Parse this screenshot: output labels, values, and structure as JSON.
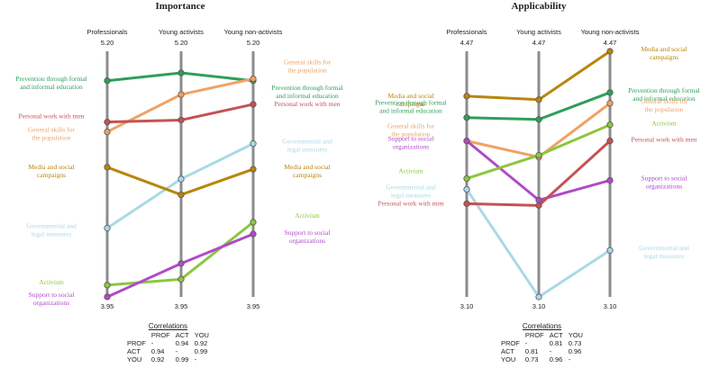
{
  "chart_data": [
    {
      "type": "line",
      "title": "Importance",
      "axes": [
        "Professionals",
        "Young activists",
        "Young non-activists"
      ],
      "ylim": [
        3.95,
        5.2
      ],
      "axis_top_labels": [
        "5.20",
        "5.20",
        "5.20"
      ],
      "axis_bottom_labels": [
        "3.95",
        "3.95",
        "3.95"
      ],
      "series": [
        {
          "name": "Prevention through formal and informal education",
          "color": "#2f9e5b",
          "values": [
            5.05,
            5.09,
            5.05
          ]
        },
        {
          "name": "General skills for the population",
          "color": "#f0a263",
          "values": [
            4.79,
            4.98,
            5.06
          ]
        },
        {
          "name": "Personal work with men",
          "color": "#c65153",
          "values": [
            4.84,
            4.85,
            4.93
          ]
        },
        {
          "name": "Governmental and legal measures",
          "color": "#a9d9e6",
          "values": [
            4.3,
            4.55,
            4.73
          ]
        },
        {
          "name": "Media and social campaigns",
          "color": "#b8860b",
          "values": [
            4.61,
            4.47,
            4.6
          ]
        },
        {
          "name": "Activism",
          "color": "#8cc63f",
          "values": [
            4.01,
            4.04,
            4.33
          ]
        },
        {
          "name": "Support to social organizations",
          "color": "#b04ac8",
          "values": [
            3.95,
            4.12,
            4.27
          ]
        }
      ],
      "correlations": {
        "title": "Correlations",
        "headers": [
          "PROF",
          "ACT",
          "YOU"
        ],
        "rows": [
          {
            "label": "PROF",
            "values": [
              "-",
              "0.94",
              "0.92"
            ]
          },
          {
            "label": "ACT",
            "values": [
              "0.94",
              "-",
              "0.99"
            ]
          },
          {
            "label": "YOU",
            "values": [
              "0.92",
              "0.99",
              "-"
            ]
          }
        ]
      }
    },
    {
      "type": "line",
      "title": "Applicability",
      "axes": [
        "Professionals",
        "Young activists",
        "Young non-activists"
      ],
      "ylim": [
        3.1,
        4.47
      ],
      "axis_top_labels": [
        "4.47",
        "4.47",
        "4.47"
      ],
      "axis_bottom_labels": [
        "3.10",
        "3.10",
        "3.10"
      ],
      "series": [
        {
          "name": "Media and social campaigns",
          "color": "#b8860b",
          "values": [
            4.22,
            4.2,
            4.47
          ]
        },
        {
          "name": "Prevention through formal and informal education",
          "color": "#2f9e5b",
          "values": [
            4.1,
            4.09,
            4.24
          ]
        },
        {
          "name": "General skills for the population",
          "color": "#f0a263",
          "values": [
            3.97,
            3.88,
            4.18
          ]
        },
        {
          "name": "Support to social organizations",
          "color": "#b04ac8",
          "values": [
            3.97,
            3.64,
            3.75
          ]
        },
        {
          "name": "Activism",
          "color": "#8cc63f",
          "values": [
            3.76,
            3.89,
            4.06
          ]
        },
        {
          "name": "Governmental and legal measures",
          "color": "#a9d9e6",
          "values": [
            3.7,
            3.1,
            3.36
          ]
        },
        {
          "name": "Personal work with men",
          "color": "#c65153",
          "values": [
            3.62,
            3.61,
            3.97
          ]
        }
      ],
      "correlations": {
        "title": "Correlations",
        "headers": [
          "PROF",
          "ACT",
          "YOU"
        ],
        "rows": [
          {
            "label": "PROF",
            "values": [
              "-",
              "0.81",
              "0.73"
            ]
          },
          {
            "label": "ACT",
            "values": [
              "0.81",
              "-",
              "0.96"
            ]
          },
          {
            "label": "YOU",
            "values": [
              "0.73",
              "0.96",
              "-"
            ]
          }
        ]
      }
    }
  ]
}
